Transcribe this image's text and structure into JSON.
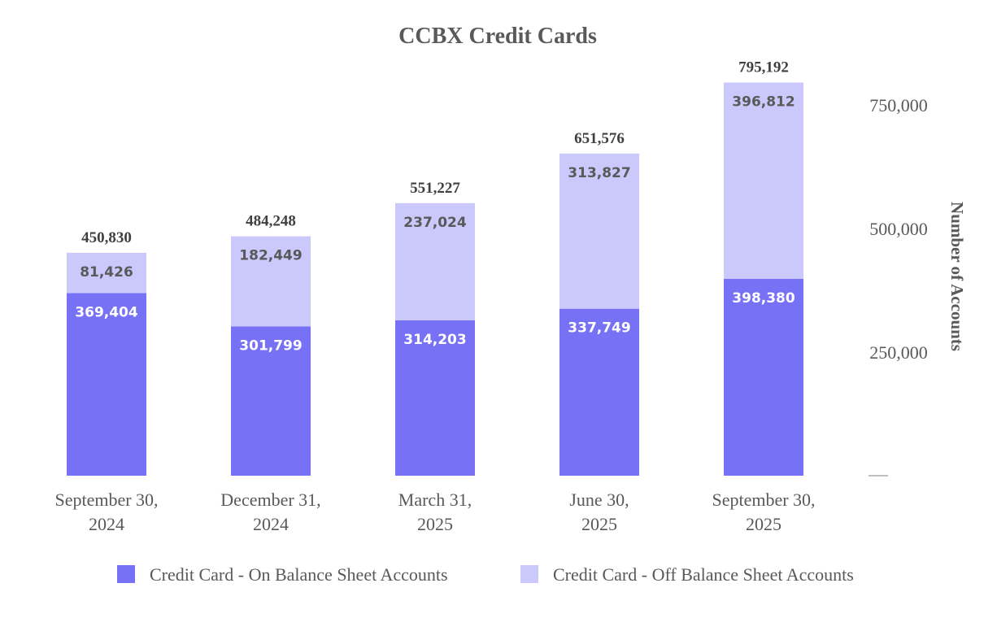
{
  "chart_data": {
    "type": "bar",
    "stacked": true,
    "title": "CCBX Credit Cards",
    "ylabel": "Number of Accounts",
    "ylim": [
      0,
      800000
    ],
    "yaxis_position": "right",
    "yticks": [
      0,
      250000,
      500000,
      750000
    ],
    "ytick_labels": [
      "",
      "250,000",
      "500,000",
      "750,000"
    ],
    "grid": false,
    "legend_position": "bottom",
    "categories": [
      [
        "September 30,",
        "2024"
      ],
      [
        "December 31,",
        "2024"
      ],
      [
        "March 31,",
        "2025"
      ],
      [
        "June 30,",
        "2025"
      ],
      [
        "September 30,",
        "2025"
      ]
    ],
    "series": [
      {
        "name": "Credit Card -  On Balance Sheet Accounts",
        "color": "#7771F5",
        "values": [
          369404,
          301799,
          314203,
          337749,
          398380
        ],
        "labels": [
          "369,404",
          "301,799",
          "314,203",
          "337,749",
          "398,380"
        ]
      },
      {
        "name": "Credit Card -  Off Balance Sheet Accounts",
        "color": "#CBC8FC",
        "values": [
          81426,
          182449,
          237024,
          313827,
          396812
        ],
        "labels": [
          "81,426",
          "182,449",
          "237,024",
          "313,827",
          "396,812"
        ]
      }
    ],
    "totals": [
      450830,
      484248,
      551227,
      651576,
      795192
    ],
    "total_labels": [
      "450,830",
      "484,248",
      "551,227",
      "651,576",
      "795,192"
    ]
  }
}
